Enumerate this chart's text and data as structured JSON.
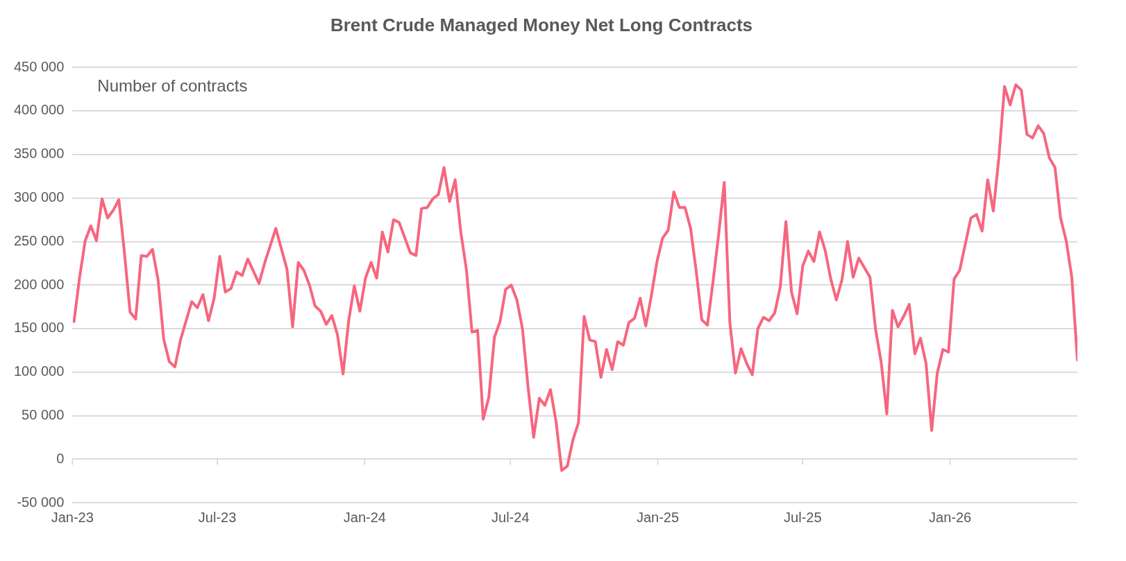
{
  "chart_data": {
    "type": "line",
    "title": "Brent Crude Managed Money Net Long Contracts",
    "annotations": [
      "Number of contracts"
    ],
    "xlim": [
      "2023-01-01",
      "2026-06-09"
    ],
    "xticks": [
      {
        "value": "2023-01-01",
        "label": "Jan-23"
      },
      {
        "value": "2023-07-01",
        "label": "Jul-23"
      },
      {
        "value": "2024-01-01",
        "label": "Jan-24"
      },
      {
        "value": "2024-07-01",
        "label": "Jul-24"
      },
      {
        "value": "2025-01-01",
        "label": "Jan-25"
      },
      {
        "value": "2025-07-01",
        "label": "Jul-25"
      },
      {
        "value": "2026-01-01",
        "label": "Jan-26"
      }
    ],
    "ylim": [
      -50000,
      450000
    ],
    "yticks": [
      {
        "value": -50000,
        "label": "-50 000"
      },
      {
        "value": 0,
        "label": "0"
      },
      {
        "value": 50000,
        "label": "50 000"
      },
      {
        "value": 100000,
        "label": "100 000"
      },
      {
        "value": 150000,
        "label": "150 000"
      },
      {
        "value": 200000,
        "label": "200 000"
      },
      {
        "value": 250000,
        "label": "250 000"
      },
      {
        "value": 300000,
        "label": "300 000"
      },
      {
        "value": 350000,
        "label": "350 000"
      },
      {
        "value": 400000,
        "label": "400 000"
      },
      {
        "value": 450000,
        "label": "450 000"
      }
    ],
    "grid": "y",
    "series": [
      {
        "color": "#f7667e",
        "x": [
          "2023-01-03",
          "2023-01-10",
          "2023-01-17",
          "2023-01-24",
          "2023-01-31",
          "2023-02-07",
          "2023-02-14",
          "2023-02-21",
          "2023-02-28",
          "2023-03-07",
          "2023-03-14",
          "2023-03-21",
          "2023-03-28",
          "2023-04-04",
          "2023-04-11",
          "2023-04-18",
          "2023-04-25",
          "2023-05-02",
          "2023-05-09",
          "2023-05-16",
          "2023-05-30",
          "2023-06-06",
          "2023-06-13",
          "2023-06-20",
          "2023-06-27",
          "2023-07-04",
          "2023-07-11",
          "2023-07-18",
          "2023-07-25",
          "2023-08-01",
          "2023-08-08",
          "2023-08-22",
          "2023-08-29",
          "2023-09-12",
          "2023-09-26",
          "2023-10-03",
          "2023-10-10",
          "2023-10-17",
          "2023-10-24",
          "2023-10-31",
          "2023-11-07",
          "2023-11-14",
          "2023-11-21",
          "2023-11-28",
          "2023-12-05",
          "2023-12-12",
          "2023-12-19",
          "2023-12-26",
          "2024-01-02",
          "2024-01-09",
          "2024-01-16",
          "2024-01-23",
          "2024-01-30",
          "2024-02-06",
          "2024-02-13",
          "2024-02-27",
          "2024-03-05",
          "2024-03-12",
          "2024-03-19",
          "2024-03-26",
          "2024-04-02",
          "2024-04-09",
          "2024-04-16",
          "2024-04-23",
          "2024-04-30",
          "2024-05-07",
          "2024-05-14",
          "2024-05-21",
          "2024-05-28",
          "2024-06-04",
          "2024-06-11",
          "2024-06-18",
          "2024-06-25",
          "2024-07-02",
          "2024-07-09",
          "2024-07-16",
          "2024-07-23",
          "2024-07-30",
          "2024-08-06",
          "2024-08-13",
          "2024-08-20",
          "2024-08-27",
          "2024-09-03",
          "2024-09-10",
          "2024-09-17",
          "2024-09-24",
          "2024-10-01",
          "2024-10-08",
          "2024-10-15",
          "2024-10-22",
          "2024-10-29",
          "2024-11-05",
          "2024-11-12",
          "2024-11-19",
          "2024-11-26",
          "2024-12-03",
          "2024-12-10",
          "2024-12-17",
          "2024-12-24",
          "2024-12-31",
          "2025-01-07",
          "2025-01-14",
          "2025-01-21",
          "2025-01-28",
          "2025-02-04",
          "2025-02-11",
          "2025-02-18",
          "2025-02-25",
          "2025-03-04",
          "2025-03-11",
          "2025-03-18",
          "2025-03-25",
          "2025-04-01",
          "2025-04-08",
          "2025-04-15",
          "2025-04-22",
          "2025-04-29",
          "2025-05-06",
          "2025-05-13",
          "2025-05-20",
          "2025-05-27",
          "2025-06-03",
          "2025-06-10",
          "2025-06-17",
          "2025-06-24",
          "2025-07-01",
          "2025-07-08",
          "2025-07-15",
          "2025-07-22",
          "2025-07-29",
          "2025-08-05",
          "2025-08-12",
          "2025-08-19",
          "2025-08-26",
          "2025-09-02",
          "2025-09-09",
          "2025-09-16",
          "2025-09-23",
          "2025-09-30",
          "2025-10-07",
          "2025-10-14",
          "2025-10-21",
          "2025-10-28",
          "2025-11-04",
          "2025-11-11",
          "2025-11-18",
          "2025-11-25",
          "2025-12-02",
          "2025-12-09",
          "2025-12-16",
          "2025-12-23",
          "2025-12-30",
          "2026-01-06",
          "2026-01-13",
          "2026-01-20",
          "2026-01-27",
          "2026-02-03",
          "2026-02-10",
          "2026-02-17",
          "2026-02-24",
          "2026-03-03",
          "2026-03-10",
          "2026-03-17",
          "2026-03-24",
          "2026-03-31",
          "2026-04-07",
          "2026-04-14",
          "2026-04-21",
          "2026-04-28",
          "2026-05-05",
          "2026-05-12",
          "2026-05-19",
          "2026-05-26",
          "2026-06-02",
          "2026-06-09"
        ],
        "values": [
          158000,
          209000,
          251000,
          268000,
          251000,
          299000,
          277000,
          286000,
          298000,
          237000,
          169000,
          161000,
          234000,
          233000,
          241000,
          206000,
          138000,
          112000,
          106000,
          137000,
          181000,
          174000,
          189000,
          159000,
          185000,
          233000,
          192000,
          196000,
          215000,
          211000,
          230000,
          202000,
          225000,
          265000,
          218000,
          152000,
          226000,
          217000,
          200000,
          176000,
          170000,
          155000,
          165000,
          143000,
          98000,
          159000,
          199000,
          170000,
          208000,
          226000,
          208000,
          261000,
          238000,
          275000,
          272000,
          237000,
          234000,
          288000,
          289000,
          299000,
          304000,
          335000,
          296000,
          321000,
          261000,
          218000,
          146000,
          148000,
          46000,
          71000,
          140000,
          158000,
          195000,
          200000,
          183000,
          150000,
          83000,
          25000,
          70000,
          62000,
          80000,
          43000,
          -13000,
          -8000,
          22000,
          42000,
          164000,
          137000,
          135000,
          94000,
          126000,
          103000,
          135000,
          131000,
          157000,
          162000,
          185000,
          153000,
          188000,
          227000,
          254000,
          263000,
          307000,
          289000,
          289000,
          265000,
          216000,
          160000,
          154000,
          204000,
          258000,
          318000,
          157000,
          99000,
          127000,
          110000,
          97000,
          150000,
          163000,
          159000,
          168000,
          198000,
          273000,
          192000,
          167000,
          222000,
          239000,
          227000,
          261000,
          240000,
          207000,
          183000,
          206000,
          250000,
          209000,
          231000,
          220000,
          209000,
          149000,
          111000,
          52000,
          171000,
          152000,
          164000,
          178000,
          121000,
          139000,
          110000,
          33000,
          99000,
          126000,
          123000,
          207000,
          217000,
          247000,
          277000,
          281000,
          262000,
          321000,
          285000,
          347000,
          428000,
          407000,
          430000,
          424000,
          373000,
          369000,
          383000,
          374000,
          346000,
          335000,
          277000,
          251000,
          209000,
          114000
        ]
      }
    ]
  }
}
